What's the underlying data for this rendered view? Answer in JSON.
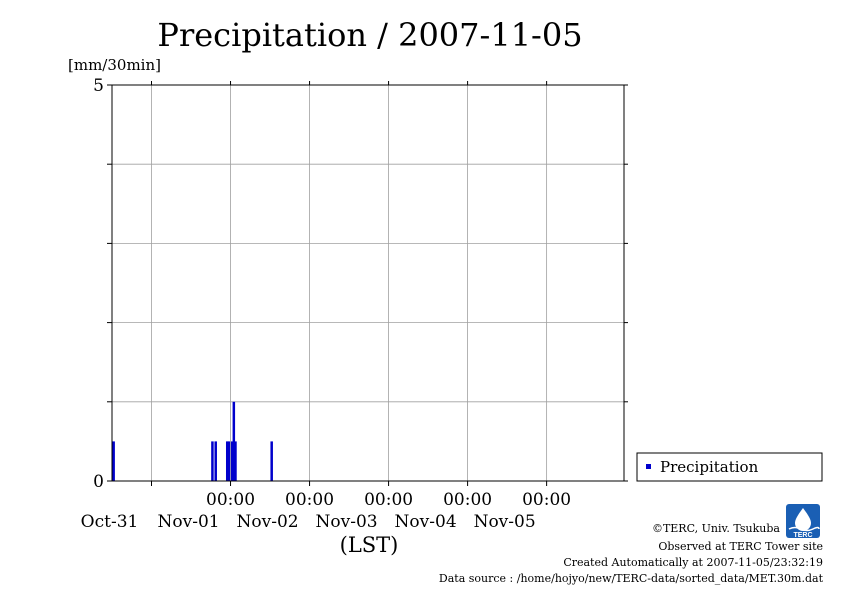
{
  "chart_data": {
    "type": "bar",
    "title": "Precipitation / 2007-11-05",
    "ylabel": "[mm/30min]",
    "xlabel": "(LST)",
    "ylim": [
      0,
      5
    ],
    "xlim": [
      "2007-10-30T12:00",
      "2007-11-05T23:30"
    ],
    "ytick_labels": [
      "0",
      "5"
    ],
    "xtick_labels": [
      {
        "time": "00:00",
        "date": "Oct-31",
        "at": "2007-10-31T00:00"
      },
      {
        "time": "00:00",
        "date": "Nov-01",
        "at": "2007-11-01T00:00"
      },
      {
        "time": "00:00",
        "date": "Nov-02",
        "at": "2007-11-02T00:00"
      },
      {
        "time": "00:00",
        "date": "Nov-03",
        "at": "2007-11-03T00:00"
      },
      {
        "time": "00:00",
        "date": "Nov-04",
        "at": "2007-11-04T00:00"
      },
      {
        "time": "00:00",
        "date": "Nov-05",
        "at": "2007-11-05T00:00"
      }
    ],
    "grid": true,
    "legend_position": "right-bottom",
    "series": [
      {
        "name": "Precipitation",
        "color": "#0000cc",
        "points": [
          {
            "t": "2007-10-30T12:30",
            "v": 0.5
          },
          {
            "t": "2007-10-31T18:30",
            "v": 0.5
          },
          {
            "t": "2007-10-31T19:30",
            "v": 0.5
          },
          {
            "t": "2007-10-31T23:00",
            "v": 0.5
          },
          {
            "t": "2007-10-31T23:30",
            "v": 0.5
          },
          {
            "t": "2007-11-01T00:30",
            "v": 0.5
          },
          {
            "t": "2007-11-01T01:00",
            "v": 1.0
          },
          {
            "t": "2007-11-01T01:30",
            "v": 0.5
          },
          {
            "t": "2007-11-01T12:30",
            "v": 0.5
          }
        ]
      }
    ]
  },
  "credits": {
    "copyright": "©TERC, Univ. Tsukuba",
    "observed": "Observed at TERC Tower site",
    "created": "Created Automatically at 2007-11-05/23:32:19",
    "source": "Data source : /home/hojyo/new/TERC-data/sorted_data/MET.30m.dat"
  },
  "logo": {
    "text": "TERC",
    "color": "#1a5fb4"
  }
}
